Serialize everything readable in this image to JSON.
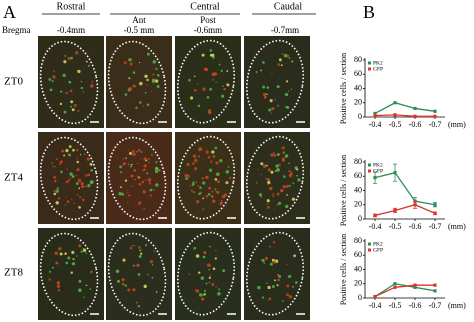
{
  "panel_a": {
    "label": "A",
    "regions": [
      "Rostral",
      "Central",
      "Caudal"
    ],
    "bregma": "Bregma",
    "levels": [
      "-0.4mm",
      "-0.5 mm",
      "-0.6mm",
      "-0.7mm"
    ],
    "sublabels": [
      "Ant",
      "Post"
    ],
    "rows": [
      "ZT0",
      "ZT4",
      "ZT8"
    ]
  },
  "panel_b": {
    "label": "B"
  },
  "chart_data": [
    {
      "type": "line",
      "ylabel": "Positive cells / section",
      "xlabel": "(mm)",
      "categories": [
        "-0.4",
        "-0.5",
        "-0.6",
        "-0.7"
      ],
      "ylim": [
        0,
        80
      ],
      "yticks": [
        0,
        20,
        40,
        60,
        80
      ],
      "legend": "upper left",
      "series": [
        {
          "name": "PK2",
          "color": "#2e8b57",
          "values": [
            5,
            20,
            12,
            8
          ]
        },
        {
          "name": "GFP",
          "color": "#d9352a",
          "values": [
            2,
            3,
            1,
            1
          ]
        }
      ]
    },
    {
      "type": "line",
      "ylabel": "Positive cells / section",
      "xlabel": "(mm)",
      "categories": [
        "-0.4",
        "-0.5",
        "-0.6",
        "-0.7"
      ],
      "ylim": [
        0,
        80
      ],
      "yticks": [
        0,
        20,
        40,
        60,
        80
      ],
      "legend": "upper left",
      "series": [
        {
          "name": "PK2",
          "color": "#2e8b57",
          "values": [
            58,
            65,
            25,
            20
          ],
          "errors": [
            8,
            12,
            5,
            3
          ]
        },
        {
          "name": "GFP",
          "color": "#d9352a",
          "values": [
            5,
            12,
            20,
            8
          ],
          "errors": [
            2,
            3,
            5,
            2
          ]
        }
      ]
    },
    {
      "type": "line",
      "ylabel": "Positive cells / section",
      "xlabel": "(mm)",
      "categories": [
        "-0.4",
        "-0.5",
        "-0.6",
        "-0.7"
      ],
      "ylim": [
        0,
        80
      ],
      "yticks": [
        0,
        20,
        40,
        60,
        80
      ],
      "legend": "upper left",
      "series": [
        {
          "name": "PK2",
          "color": "#2e8b57",
          "values": [
            2,
            20,
            15,
            10
          ]
        },
        {
          "name": "GFP",
          "color": "#d9352a",
          "values": [
            2,
            15,
            18,
            18
          ]
        }
      ]
    }
  ]
}
